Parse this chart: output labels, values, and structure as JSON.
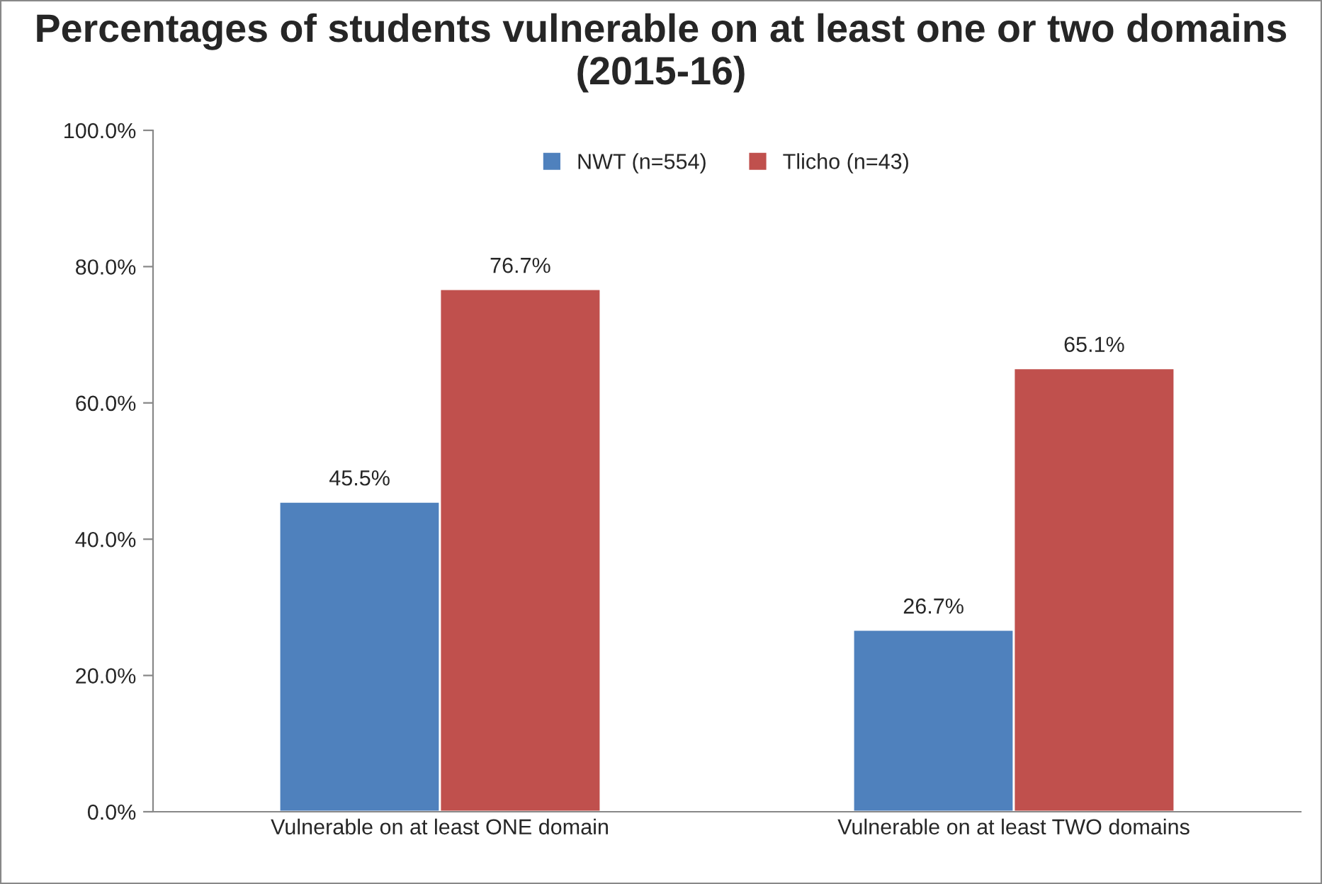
{
  "chart_data": {
    "type": "bar",
    "title": "Percentages of students vulnerable on at least one or two domains (2015-16)",
    "categories": [
      "Vulnerable on at least ONE domain",
      "Vulnerable on at least TWO domains"
    ],
    "series": [
      {
        "name": "NWT (n=554)",
        "color": "#4f81bd",
        "values": [
          45.5,
          26.7
        ],
        "value_labels": [
          "45.5%",
          "26.7%"
        ]
      },
      {
        "name": "Tlicho (n=43)",
        "color": "#c0504d",
        "values": [
          76.7,
          65.1
        ],
        "value_labels": [
          "76.7%",
          "65.1%"
        ]
      }
    ],
    "ylim": [
      0,
      100
    ],
    "yticks": [
      {
        "value": 0,
        "label": "0.0%"
      },
      {
        "value": 20,
        "label": "20.0%"
      },
      {
        "value": 40,
        "label": "40.0%"
      },
      {
        "value": 60,
        "label": "60.0%"
      },
      {
        "value": 80,
        "label": "80.0%"
      },
      {
        "value": 100,
        "label": "100.0%"
      }
    ],
    "grid": false,
    "legend": "top"
  }
}
